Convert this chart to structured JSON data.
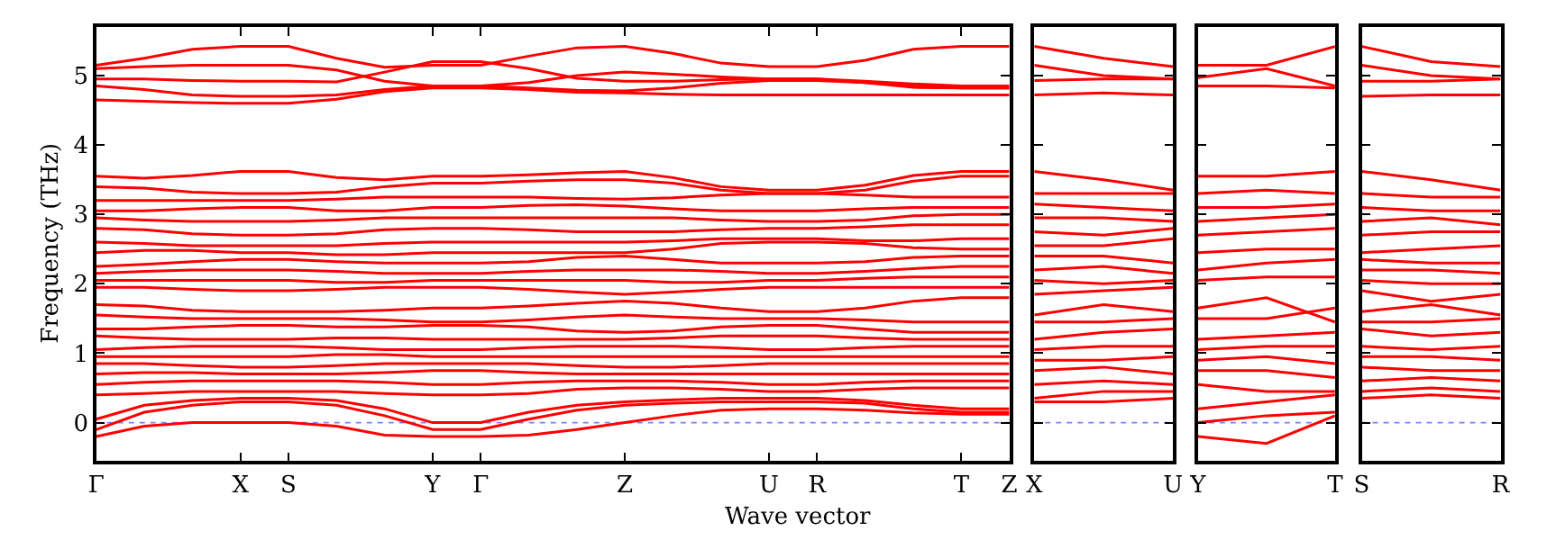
{
  "chart_data": [
    {
      "type": "line",
      "ylabel": "Frequency (THz)",
      "xlabel": "Wave vector",
      "color": "#ff0000",
      "grid": false,
      "marker": "none",
      "line_style": "solid",
      "categories": [
        "Γ",
        null,
        null,
        "X",
        "S",
        null,
        null,
        "Y",
        "Γ",
        null,
        null,
        "Z",
        null,
        null,
        "U",
        "R",
        null,
        null,
        "T",
        "Z"
      ],
      "ylim": [
        -0.55,
        5.7
      ],
      "yticks": [
        0,
        1,
        2,
        3,
        4,
        5
      ],
      "ref_lines": [
        {
          "axis": "y",
          "value": 0,
          "color": "#8080ff",
          "line_style": "dotted"
        }
      ],
      "series": [
        {
          "values": [
            5.15,
            5.25,
            5.38,
            5.42,
            5.42,
            5.25,
            5.12,
            5.15,
            5.15,
            5.28,
            5.4,
            5.42,
            5.32,
            5.18,
            5.13,
            5.13,
            5.22,
            5.38,
            5.42,
            5.42
          ]
        },
        {
          "values": [
            5.1,
            5.13,
            5.15,
            5.15,
            5.15,
            5.08,
            4.92,
            4.85,
            4.85,
            4.9,
            5.0,
            5.05,
            5.02,
            4.98,
            4.95,
            4.95,
            4.9,
            4.83,
            4.82,
            4.82
          ]
        },
        {
          "values": [
            4.95,
            4.95,
            4.93,
            4.92,
            4.92,
            4.91,
            5.05,
            5.2,
            5.2,
            5.1,
            4.96,
            4.92,
            4.92,
            4.94,
            4.95,
            4.95,
            4.92,
            4.88,
            4.85,
            4.85
          ]
        },
        {
          "values": [
            4.85,
            4.8,
            4.72,
            4.7,
            4.7,
            4.72,
            4.8,
            4.85,
            4.85,
            4.82,
            4.79,
            4.78,
            4.82,
            4.89,
            4.93,
            4.93,
            4.9,
            4.85,
            4.82,
            4.82
          ]
        },
        {
          "values": [
            4.65,
            4.63,
            4.61,
            4.6,
            4.6,
            4.66,
            4.77,
            4.82,
            4.82,
            4.8,
            4.76,
            4.75,
            4.73,
            4.72,
            4.72,
            4.72,
            4.72,
            4.72,
            4.72,
            4.72
          ]
        },
        {
          "values": [
            3.55,
            3.52,
            3.56,
            3.62,
            3.62,
            3.53,
            3.5,
            3.55,
            3.55,
            3.57,
            3.6,
            3.62,
            3.53,
            3.4,
            3.35,
            3.35,
            3.42,
            3.56,
            3.62,
            3.62
          ]
        },
        {
          "values": [
            3.4,
            3.38,
            3.32,
            3.3,
            3.3,
            3.32,
            3.4,
            3.45,
            3.45,
            3.48,
            3.5,
            3.5,
            3.45,
            3.35,
            3.3,
            3.3,
            3.35,
            3.48,
            3.55,
            3.55
          ]
        },
        {
          "values": [
            3.2,
            3.2,
            3.2,
            3.2,
            3.2,
            3.22,
            3.25,
            3.25,
            3.25,
            3.25,
            3.23,
            3.22,
            3.24,
            3.28,
            3.3,
            3.3,
            3.28,
            3.25,
            3.25,
            3.25
          ]
        },
        {
          "values": [
            3.05,
            3.05,
            3.08,
            3.1,
            3.1,
            3.05,
            3.05,
            3.1,
            3.1,
            3.13,
            3.14,
            3.12,
            3.08,
            3.05,
            3.05,
            3.05,
            3.08,
            3.1,
            3.1,
            3.1
          ]
        },
        {
          "values": [
            2.95,
            2.92,
            2.9,
            2.9,
            2.9,
            2.92,
            2.95,
            2.95,
            2.95,
            2.95,
            2.95,
            2.95,
            2.95,
            2.92,
            2.9,
            2.9,
            2.92,
            2.98,
            3.0,
            3.0
          ]
        },
        {
          "values": [
            2.8,
            2.78,
            2.72,
            2.7,
            2.7,
            2.72,
            2.78,
            2.8,
            2.8,
            2.78,
            2.75,
            2.75,
            2.75,
            2.78,
            2.8,
            2.8,
            2.82,
            2.85,
            2.85,
            2.85
          ]
        },
        {
          "values": [
            2.6,
            2.58,
            2.55,
            2.55,
            2.55,
            2.55,
            2.58,
            2.6,
            2.6,
            2.6,
            2.6,
            2.6,
            2.62,
            2.65,
            2.65,
            2.65,
            2.62,
            2.62,
            2.65,
            2.65
          ]
        },
        {
          "values": [
            2.45,
            2.48,
            2.48,
            2.45,
            2.45,
            2.42,
            2.42,
            2.45,
            2.45,
            2.45,
            2.45,
            2.45,
            2.5,
            2.58,
            2.6,
            2.6,
            2.58,
            2.52,
            2.5,
            2.5
          ]
        },
        {
          "values": [
            2.25,
            2.28,
            2.32,
            2.35,
            2.35,
            2.32,
            2.3,
            2.3,
            2.3,
            2.32,
            2.38,
            2.4,
            2.35,
            2.3,
            2.3,
            2.3,
            2.32,
            2.38,
            2.4,
            2.4
          ]
        },
        {
          "values": [
            2.15,
            2.18,
            2.2,
            2.2,
            2.2,
            2.18,
            2.15,
            2.15,
            2.15,
            2.18,
            2.2,
            2.2,
            2.2,
            2.18,
            2.15,
            2.15,
            2.18,
            2.22,
            2.25,
            2.25
          ]
        },
        {
          "values": [
            2.05,
            2.05,
            2.05,
            2.05,
            2.05,
            2.02,
            2.02,
            2.05,
            2.05,
            2.05,
            2.05,
            2.05,
            2.02,
            2.02,
            2.05,
            2.05,
            2.08,
            2.1,
            2.1,
            2.1
          ]
        },
        {
          "values": [
            1.95,
            1.95,
            1.92,
            1.9,
            1.9,
            1.92,
            1.95,
            1.95,
            1.95,
            1.92,
            1.88,
            1.85,
            1.88,
            1.92,
            1.95,
            1.95,
            1.95,
            1.95,
            1.95,
            1.95
          ]
        },
        {
          "values": [
            1.7,
            1.68,
            1.62,
            1.6,
            1.6,
            1.6,
            1.62,
            1.65,
            1.65,
            1.68,
            1.72,
            1.75,
            1.72,
            1.65,
            1.6,
            1.6,
            1.65,
            1.75,
            1.8,
            1.8
          ]
        },
        {
          "values": [
            1.55,
            1.52,
            1.5,
            1.5,
            1.5,
            1.5,
            1.48,
            1.45,
            1.45,
            1.48,
            1.52,
            1.55,
            1.52,
            1.5,
            1.5,
            1.5,
            1.48,
            1.45,
            1.45,
            1.45
          ]
        },
        {
          "values": [
            1.35,
            1.35,
            1.38,
            1.4,
            1.4,
            1.38,
            1.38,
            1.4,
            1.4,
            1.38,
            1.32,
            1.3,
            1.32,
            1.38,
            1.4,
            1.4,
            1.35,
            1.3,
            1.3,
            1.3
          ]
        },
        {
          "values": [
            1.25,
            1.22,
            1.2,
            1.2,
            1.2,
            1.22,
            1.22,
            1.2,
            1.2,
            1.2,
            1.2,
            1.2,
            1.22,
            1.25,
            1.25,
            1.25,
            1.22,
            1.2,
            1.2,
            1.2
          ]
        },
        {
          "values": [
            1.05,
            1.08,
            1.1,
            1.1,
            1.1,
            1.08,
            1.05,
            1.05,
            1.05,
            1.08,
            1.1,
            1.1,
            1.1,
            1.08,
            1.05,
            1.05,
            1.08,
            1.1,
            1.1,
            1.1
          ]
        },
        {
          "values": [
            0.95,
            0.95,
            0.95,
            0.95,
            0.95,
            0.98,
            0.98,
            0.95,
            0.95,
            0.95,
            0.95,
            0.95,
            0.95,
            0.95,
            0.95,
            0.95,
            0.95,
            0.95,
            0.95,
            0.95
          ]
        },
        {
          "values": [
            0.85,
            0.85,
            0.82,
            0.8,
            0.8,
            0.82,
            0.85,
            0.85,
            0.85,
            0.85,
            0.82,
            0.8,
            0.8,
            0.82,
            0.85,
            0.85,
            0.85,
            0.85,
            0.85,
            0.85
          ]
        },
        {
          "values": [
            0.7,
            0.72,
            0.72,
            0.7,
            0.7,
            0.7,
            0.72,
            0.75,
            0.75,
            0.72,
            0.7,
            0.7,
            0.7,
            0.7,
            0.7,
            0.7,
            0.7,
            0.7,
            0.7,
            0.7
          ]
        },
        {
          "values": [
            0.55,
            0.58,
            0.6,
            0.6,
            0.6,
            0.6,
            0.58,
            0.55,
            0.55,
            0.58,
            0.6,
            0.6,
            0.6,
            0.58,
            0.55,
            0.55,
            0.58,
            0.6,
            0.6,
            0.6
          ]
        },
        {
          "values": [
            0.4,
            0.42,
            0.45,
            0.45,
            0.45,
            0.45,
            0.42,
            0.4,
            0.4,
            0.42,
            0.48,
            0.5,
            0.5,
            0.48,
            0.45,
            0.45,
            0.48,
            0.5,
            0.5,
            0.5
          ]
        },
        {
          "values": [
            0.05,
            0.25,
            0.32,
            0.35,
            0.35,
            0.32,
            0.2,
            0.0,
            0.0,
            0.15,
            0.25,
            0.3,
            0.33,
            0.35,
            0.35,
            0.35,
            0.32,
            0.25,
            0.2,
            0.2
          ]
        },
        {
          "values": [
            -0.1,
            0.15,
            0.25,
            0.3,
            0.3,
            0.25,
            0.1,
            -0.1,
            -0.1,
            0.05,
            0.18,
            0.25,
            0.28,
            0.3,
            0.3,
            0.3,
            0.28,
            0.2,
            0.15,
            0.15
          ]
        },
        {
          "values": [
            -0.2,
            -0.05,
            0.0,
            0.0,
            0.0,
            -0.05,
            -0.18,
            -0.2,
            -0.2,
            -0.18,
            -0.1,
            0.0,
            0.1,
            0.18,
            0.2,
            0.2,
            0.18,
            0.14,
            0.12,
            0.12
          ]
        }
      ]
    },
    {
      "type": "line",
      "color": "#ff0000",
      "grid": false,
      "marker": "none",
      "line_style": "solid",
      "tick_labels": "x",
      "categories": [
        "X",
        null,
        "U"
      ],
      "ylim": [
        -0.55,
        5.7
      ],
      "yticks": [
        0,
        1,
        2,
        3,
        4,
        5
      ],
      "ref_lines": [
        {
          "axis": "y",
          "value": 0,
          "color": "#8080ff",
          "line_style": "dotted"
        }
      ],
      "series": [
        {
          "values": [
            5.42,
            5.25,
            5.13
          ]
        },
        {
          "values": [
            5.15,
            5.0,
            4.95
          ]
        },
        {
          "values": [
            4.93,
            4.95,
            4.95
          ]
        },
        {
          "values": [
            4.72,
            4.75,
            4.72
          ]
        },
        {
          "values": [
            3.62,
            3.5,
            3.35
          ]
        },
        {
          "values": [
            3.3,
            3.3,
            3.3
          ]
        },
        {
          "values": [
            3.15,
            3.1,
            3.05
          ]
        },
        {
          "values": [
            2.95,
            2.95,
            2.9
          ]
        },
        {
          "values": [
            2.75,
            2.7,
            2.8
          ]
        },
        {
          "values": [
            2.55,
            2.55,
            2.65
          ]
        },
        {
          "values": [
            2.4,
            2.4,
            2.3
          ]
        },
        {
          "values": [
            2.2,
            2.25,
            2.15
          ]
        },
        {
          "values": [
            2.05,
            2.0,
            2.05
          ]
        },
        {
          "values": [
            1.85,
            1.9,
            1.95
          ]
        },
        {
          "values": [
            1.55,
            1.7,
            1.6
          ]
        },
        {
          "values": [
            1.45,
            1.45,
            1.5
          ]
        },
        {
          "values": [
            1.2,
            1.3,
            1.35
          ]
        },
        {
          "values": [
            1.05,
            1.1,
            1.1
          ]
        },
        {
          "values": [
            0.9,
            0.9,
            0.95
          ]
        },
        {
          "values": [
            0.75,
            0.8,
            0.7
          ]
        },
        {
          "values": [
            0.55,
            0.6,
            0.55
          ]
        },
        {
          "values": [
            0.35,
            0.45,
            0.45
          ]
        },
        {
          "values": [
            0.3,
            0.3,
            0.35
          ]
        }
      ]
    },
    {
      "type": "line",
      "color": "#ff0000",
      "grid": false,
      "marker": "none",
      "line_style": "solid",
      "tick_labels": "x",
      "categories": [
        "Y",
        null,
        "T"
      ],
      "ylim": [
        -0.55,
        5.7
      ],
      "yticks": [
        0,
        1,
        2,
        3,
        4,
        5
      ],
      "ref_lines": [
        {
          "axis": "y",
          "value": 0,
          "color": "#8080ff",
          "line_style": "dotted"
        }
      ],
      "series": [
        {
          "values": [
            5.15,
            5.15,
            5.42
          ]
        },
        {
          "values": [
            4.97,
            5.1,
            4.85
          ]
        },
        {
          "values": [
            4.85,
            4.85,
            4.82
          ]
        },
        {
          "values": [
            3.55,
            3.55,
            3.62
          ]
        },
        {
          "values": [
            3.3,
            3.35,
            3.3
          ]
        },
        {
          "values": [
            3.1,
            3.1,
            3.15
          ]
        },
        {
          "values": [
            2.9,
            2.95,
            3.0
          ]
        },
        {
          "values": [
            2.7,
            2.75,
            2.8
          ]
        },
        {
          "values": [
            2.45,
            2.5,
            2.5
          ]
        },
        {
          "values": [
            2.2,
            2.3,
            2.35
          ]
        },
        {
          "values": [
            2.05,
            2.1,
            2.1
          ]
        },
        {
          "values": [
            1.65,
            1.8,
            1.45
          ]
        },
        {
          "values": [
            1.5,
            1.5,
            1.65
          ]
        },
        {
          "values": [
            1.2,
            1.25,
            1.3
          ]
        },
        {
          "values": [
            1.05,
            1.1,
            1.1
          ]
        },
        {
          "values": [
            0.9,
            0.95,
            0.85
          ]
        },
        {
          "values": [
            0.75,
            0.75,
            0.65
          ]
        },
        {
          "values": [
            0.55,
            0.45,
            0.45
          ]
        },
        {
          "values": [
            0.2,
            0.3,
            0.4
          ]
        },
        {
          "values": [
            0.0,
            0.1,
            0.15
          ]
        },
        {
          "values": [
            -0.2,
            -0.3,
            0.1
          ]
        }
      ]
    },
    {
      "type": "line",
      "color": "#ff0000",
      "grid": false,
      "marker": "none",
      "line_style": "solid",
      "tick_labels": "x",
      "categories": [
        "S",
        null,
        "R"
      ],
      "ylim": [
        -0.55,
        5.7
      ],
      "yticks": [
        0,
        1,
        2,
        3,
        4,
        5
      ],
      "ref_lines": [
        {
          "axis": "y",
          "value": 0,
          "color": "#8080ff",
          "line_style": "dotted"
        }
      ],
      "series": [
        {
          "values": [
            5.42,
            5.2,
            5.13
          ]
        },
        {
          "values": [
            5.15,
            5.0,
            4.95
          ]
        },
        {
          "values": [
            4.92,
            4.92,
            4.95
          ]
        },
        {
          "values": [
            4.7,
            4.72,
            4.72
          ]
        },
        {
          "values": [
            3.62,
            3.5,
            3.35
          ]
        },
        {
          "values": [
            3.3,
            3.25,
            3.25
          ]
        },
        {
          "values": [
            3.1,
            3.05,
            3.05
          ]
        },
        {
          "values": [
            2.9,
            2.95,
            2.85
          ]
        },
        {
          "values": [
            2.7,
            2.75,
            2.75
          ]
        },
        {
          "values": [
            2.45,
            2.5,
            2.55
          ]
        },
        {
          "values": [
            2.35,
            2.3,
            2.3
          ]
        },
        {
          "values": [
            2.2,
            2.2,
            2.15
          ]
        },
        {
          "values": [
            2.05,
            2.0,
            2.0
          ]
        },
        {
          "values": [
            1.9,
            1.75,
            1.85
          ]
        },
        {
          "values": [
            1.6,
            1.7,
            1.55
          ]
        },
        {
          "values": [
            1.45,
            1.45,
            1.5
          ]
        },
        {
          "values": [
            1.35,
            1.25,
            1.3
          ]
        },
        {
          "values": [
            1.1,
            1.05,
            1.1
          ]
        },
        {
          "values": [
            0.95,
            0.95,
            0.9
          ]
        },
        {
          "values": [
            0.8,
            0.75,
            0.75
          ]
        },
        {
          "values": [
            0.6,
            0.65,
            0.6
          ]
        },
        {
          "values": [
            0.45,
            0.5,
            0.45
          ]
        },
        {
          "values": [
            0.35,
            0.4,
            0.35
          ]
        }
      ]
    }
  ]
}
